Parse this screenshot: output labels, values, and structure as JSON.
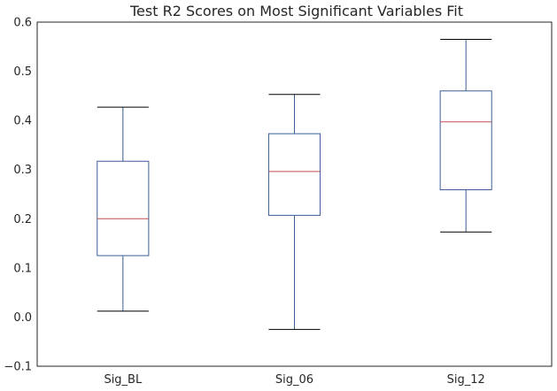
{
  "chart_data": {
    "type": "box",
    "title": "Test R2 Scores on Most Significant Variables Fit",
    "xlabel": "",
    "ylabel": "",
    "ylim": [
      -0.1,
      0.6
    ],
    "yticks": [
      -0.1,
      0.0,
      0.1,
      0.2,
      0.3,
      0.4,
      0.5,
      0.6
    ],
    "ytick_labels": [
      "−0.1",
      "0.0",
      "0.1",
      "0.2",
      "0.3",
      "0.4",
      "0.5",
      "0.6"
    ],
    "grid": false,
    "categories": [
      "Sig_BL",
      "Sig_06",
      "Sig_12"
    ],
    "boxes": [
      {
        "whisker_low": 0.012,
        "q1": 0.125,
        "median": 0.2,
        "q3": 0.317,
        "whisker_high": 0.427
      },
      {
        "whisker_low": -0.025,
        "q1": 0.207,
        "median": 0.296,
        "q3": 0.373,
        "whisker_high": 0.453
      },
      {
        "whisker_low": 0.173,
        "q1": 0.259,
        "median": 0.397,
        "q3": 0.46,
        "whisker_high": 0.565
      }
    ],
    "colors": {
      "box": "#3c5f96",
      "median": "#c44e52",
      "whisker_cap": "#000000",
      "axis": "#262626"
    }
  }
}
